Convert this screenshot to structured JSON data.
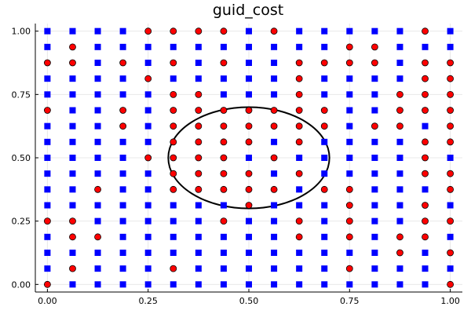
{
  "chart_data": {
    "type": "scatter",
    "title": "guid_cost",
    "xlabel": "",
    "ylabel": "",
    "xlim": [
      -0.03,
      1.03
    ],
    "ylim": [
      -0.03,
      1.03
    ],
    "x_ticks": [
      0.0,
      0.25,
      0.5,
      0.75,
      1.0
    ],
    "y_ticks": [
      0.0,
      0.25,
      0.5,
      0.75,
      1.0
    ],
    "x_tick_labels": [
      "0.00",
      "0.25",
      "0.50",
      "0.75",
      "1.00"
    ],
    "y_tick_labels": [
      "0.00",
      "0.25",
      "0.50",
      "0.75",
      "1.00"
    ],
    "grid": true,
    "legend": "none",
    "grid_points": {
      "x": [
        0,
        0.0625,
        0.125,
        0.1875,
        0.25,
        0.3125,
        0.375,
        0.4375,
        0.5,
        0.5625,
        0.625,
        0.6875,
        0.75,
        0.8125,
        0.875,
        0.9375,
        1.0
      ],
      "y_rows_top_to_bottom": [
        1.0,
        0.9375,
        0.875,
        0.8125,
        0.75,
        0.6875,
        0.625,
        0.5625,
        0.5,
        0.4375,
        0.375,
        0.3125,
        0.25,
        0.1875,
        0.125,
        0.0625,
        0.0
      ],
      "marker_rows_top_to_bottom": [
        "SSSSCCCCSCSSSSSCS",
        "SCSSSSSSSSSSCCSSS",
        "CCSCSCSCSSCCCCSCC",
        "SSSSCSSSSSCSSSSCC",
        "SSSSSCCSSSCSSSCCC",
        "CSSCSCCCCCCCSSCCC",
        "SSSCSCCCCCCCSCCSC",
        "SSSSSCCCCSCSSSSCC",
        "SSSSCCCCSCSSSSSCS",
        "SSSSSCCCCSCSSSSCC",
        "SSCSSCCCCCSCCSSSC",
        "SSSSSSSSCSSSCSSCS",
        "CCSSSSSCSSCSCSSCC",
        "SCCSSSSSSSCSCSCCS",
        "SSSSSSSSSSSSSSCSC",
        "SCSSSCSSSSSSCSSSS",
        "CSSSSSSSSSSSSSSSC"
      ],
      "marker_legend": {
        "S": "square",
        "C": "circle"
      }
    },
    "series": [
      {
        "marker": "square",
        "color": "#0000ff"
      },
      {
        "marker": "circle",
        "color": "#ff0000",
        "edge_color": "#000000"
      }
    ],
    "ellipse": {
      "cx": 0.5,
      "cy": 0.5,
      "rx": 0.2,
      "ry": 0.2,
      "stroke": "#000000"
    }
  }
}
